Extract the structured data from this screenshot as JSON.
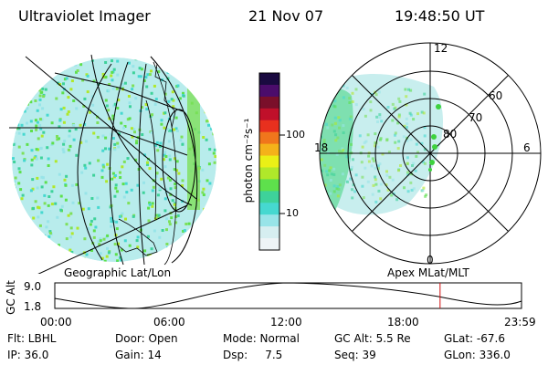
{
  "header": {
    "title": "Ultraviolet Imager",
    "date": "21 Nov 07",
    "time": "19:48:50 UT"
  },
  "geo_panel": {
    "label": "Geographic Lat/Lon"
  },
  "colorbar": {
    "unit_label": "photon cm⁻²s⁻¹",
    "ticks": [
      "100",
      "10"
    ],
    "colors": [
      "#1a0a40",
      "#4b0c6b",
      "#7a0f2a",
      "#c0102a",
      "#e8301e",
      "#f0761c",
      "#f4b21a",
      "#eaf016",
      "#b0e82a",
      "#5ee04c",
      "#3ed29a",
      "#46d8d0",
      "#98e4e8",
      "#d6eef0",
      "#eef4f6"
    ]
  },
  "polar_panel": {
    "label": "Apex MLat/MLT",
    "mlt_labels": [
      "12",
      "18",
      "6",
      "0"
    ],
    "mlat_labels": [
      "60",
      "70",
      "80"
    ]
  },
  "timeline": {
    "axis_title": "GC Alt",
    "y_ticks": [
      "9.0",
      "1.8"
    ],
    "x_ticks": [
      "00:00",
      "06:00",
      "12:00",
      "18:00",
      "23:59"
    ],
    "current_time_fraction": 0.8255
  },
  "status": {
    "row1": [
      {
        "name": "flt",
        "text": "Flt: LBHL"
      },
      {
        "name": "door",
        "text": "Door: Open"
      },
      {
        "name": "mode",
        "text": "Mode: Normal"
      },
      {
        "name": "gc-alt",
        "text": "GC Alt: 5.5 Re"
      },
      {
        "name": "glat",
        "text": "GLat: -67.6"
      }
    ],
    "row2": [
      {
        "name": "ip",
        "text": "IP: 36.0"
      },
      {
        "name": "gain",
        "text": "Gain: 14"
      },
      {
        "name": "dsp",
        "text": "Dsp:     7.5"
      },
      {
        "name": "seq",
        "text": "Seq: 39"
      },
      {
        "name": "glon",
        "text": "GLon: 336.0"
      }
    ]
  }
}
